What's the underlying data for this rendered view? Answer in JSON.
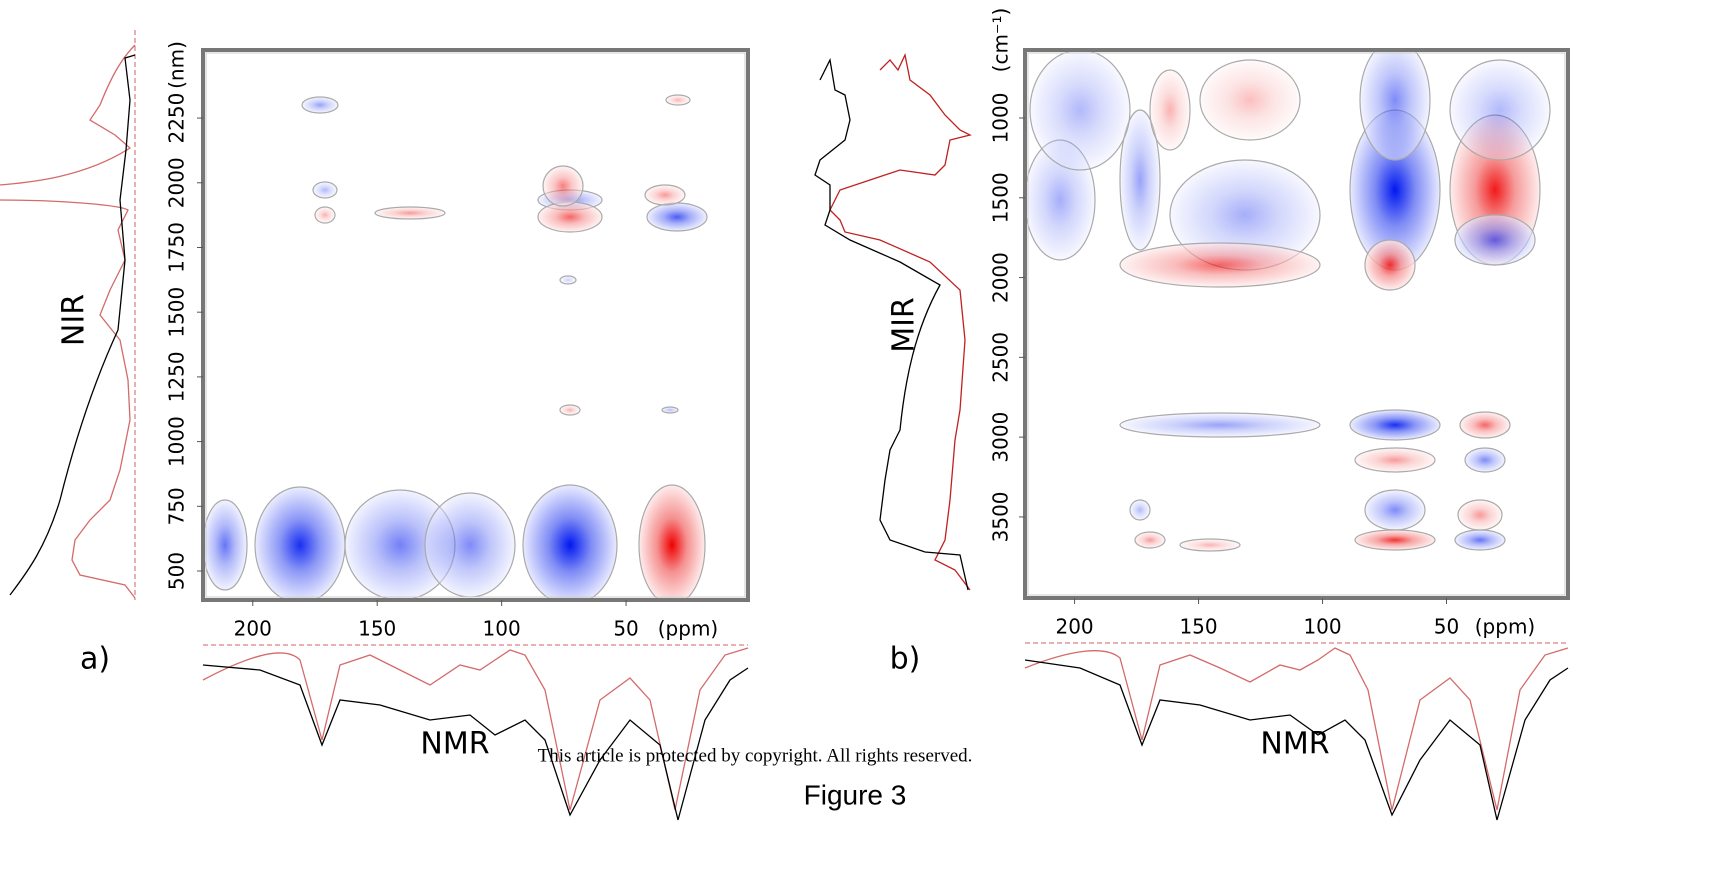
{
  "chart_data": [
    {
      "type": "heatmap",
      "label": "a)",
      "x_label": "(ppm)",
      "y_label": "(nm)",
      "side_label": "NIR",
      "bottom_label": "NMR",
      "xlim": [
        220,
        1
      ],
      "xticks": [
        200,
        150,
        100,
        50
      ],
      "ylim": [
        388,
        2513
      ],
      "yticks": [
        500,
        750,
        1000,
        1250,
        1500,
        1750,
        2000,
        2250
      ]
    },
    {
      "type": "heatmap",
      "label": "b)",
      "x_label": "(ppm)",
      "y_label": "(cm⁻¹)",
      "side_label": "MIR",
      "bottom_label": "NMR",
      "xlim": [
        220,
        1
      ],
      "xticks": [
        200,
        150,
        100,
        50
      ],
      "ylim": [
        4008,
        574
      ],
      "yticks": [
        1000,
        1500,
        2000,
        2500,
        3000,
        3500
      ]
    }
  ],
  "footer": {
    "notice": "This article is protected by copyright. All rights reserved.",
    "caption": "Figure 3"
  }
}
